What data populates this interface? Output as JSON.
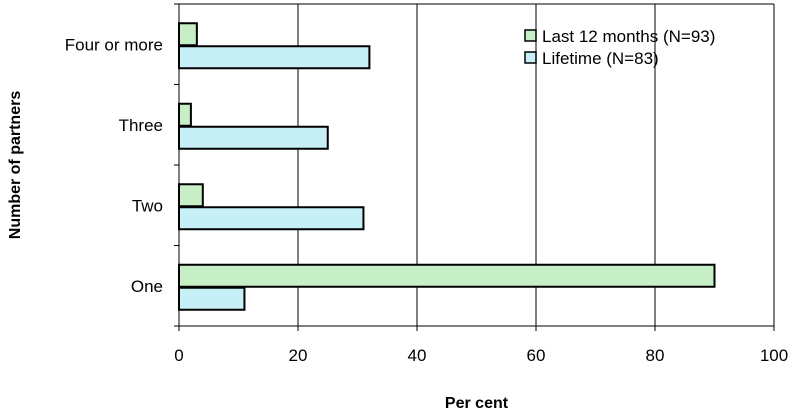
{
  "chart_data": {
    "type": "bar",
    "orientation": "horizontal",
    "categories": [
      "One",
      "Two",
      "Three",
      "Four or more"
    ],
    "series": [
      {
        "name": "Last 12 months (N=93)",
        "values": [
          90,
          4,
          2,
          3
        ],
        "color": "#c6efc6"
      },
      {
        "name": "Lifetime (N=83)",
        "values": [
          11,
          31,
          25,
          32
        ],
        "color": "#c6f0f5"
      }
    ],
    "xlabel": "Per cent",
    "ylabel": "Number of partners",
    "xlim": [
      0,
      100
    ],
    "xticks": [
      0,
      20,
      40,
      60,
      80,
      100
    ],
    "grid": "vertical",
    "legend_position": "top-right"
  }
}
